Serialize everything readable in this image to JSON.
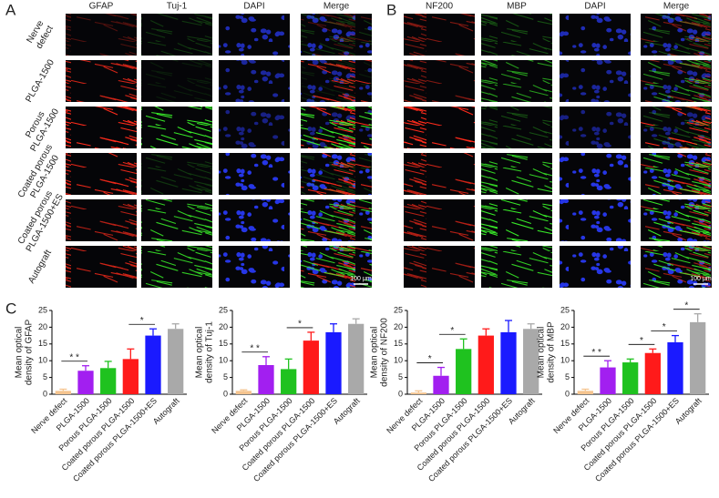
{
  "panel_a": {
    "label": "A",
    "columns": [
      "GFAP",
      "Tuj-1",
      "DAPI",
      "Merge"
    ],
    "rows": [
      [
        "Nerve",
        "defect"
      ],
      [
        "PLGA-1500"
      ],
      [
        "Porous",
        "PLGA-1500"
      ],
      [
        "Coated porous",
        "PLGA-1500"
      ],
      [
        "Coated porous",
        "PLGA-1500+ES"
      ],
      [
        "Autograft"
      ]
    ],
    "scale_bar": "100 μm"
  },
  "panel_b": {
    "label": "B",
    "columns": [
      "NF200",
      "MBP",
      "DAPI",
      "Merge"
    ],
    "scale_bar": "100 μm"
  },
  "panel_c": {
    "label": "C"
  },
  "chart_data": [
    {
      "type": "bar",
      "ylabel": [
        "Mean optical",
        "density of GFAP"
      ],
      "categories": [
        "Nerve defect",
        "PLGA-1500",
        "Porous PLGA-1500",
        "Coated porous PLGA-1500",
        "Coated porous PLGA-1500+ES",
        "Autograft"
      ],
      "values": [
        1,
        7,
        7.8,
        10.5,
        17.5,
        19.5
      ],
      "errors": [
        0.5,
        1.5,
        2,
        3,
        2,
        1.5
      ],
      "colors": [
        "#f5c48f",
        "#a21ff0",
        "#1fc21f",
        "#ff1a1a",
        "#1a1aff",
        "#a9a9a9"
      ],
      "ylim": [
        0,
        25
      ],
      "yticks": [
        0,
        5,
        10,
        15,
        20,
        25
      ],
      "annotations": [
        {
          "text": "* *",
          "between": [
            0,
            1
          ]
        },
        {
          "text": "*",
          "between": [
            3,
            4
          ]
        }
      ]
    },
    {
      "type": "bar",
      "ylabel": [
        "Mean optical",
        "density of Tuj-1"
      ],
      "categories": [
        "Nerve defect",
        "PLGA-1500",
        "Porous PLGA-1500",
        "Coated porous PLGA-1500",
        "Coated porous PLGA-1500+ES",
        "Autograft"
      ],
      "values": [
        1,
        8.7,
        7.5,
        16,
        18.5,
        21
      ],
      "errors": [
        0.3,
        2.5,
        3,
        2.5,
        2.5,
        1.5
      ],
      "colors": [
        "#f5c48f",
        "#a21ff0",
        "#1fc21f",
        "#ff1a1a",
        "#1a1aff",
        "#a9a9a9"
      ],
      "ylim": [
        0,
        25
      ],
      "yticks": [
        0,
        5,
        10,
        15,
        20,
        25
      ],
      "annotations": [
        {
          "text": "* *",
          "between": [
            0,
            1
          ]
        },
        {
          "text": "*",
          "between": [
            2,
            3
          ]
        }
      ]
    },
    {
      "type": "bar",
      "ylabel": [
        "Mean optical",
        "density of NF200"
      ],
      "categories": [
        "Nerve defect",
        "PLGA-1500",
        "Porous PLGA-1500",
        "Coated porous PLGA-1500",
        "Coated porous PLGA-1500+ES",
        "Autograft"
      ],
      "values": [
        0.5,
        5.5,
        13.5,
        17.5,
        18.5,
        19.5
      ],
      "errors": [
        0.5,
        2.5,
        3,
        2,
        3.5,
        1.5
      ],
      "colors": [
        "#f5c48f",
        "#a21ff0",
        "#1fc21f",
        "#ff1a1a",
        "#1a1aff",
        "#a9a9a9"
      ],
      "ylim": [
        0,
        25
      ],
      "yticks": [
        0,
        5,
        10,
        15,
        20,
        25
      ],
      "annotations": [
        {
          "text": "*",
          "between": [
            0,
            1
          ]
        },
        {
          "text": "*",
          "between": [
            1,
            2
          ]
        }
      ]
    },
    {
      "type": "bar",
      "ylabel": [
        "Mean optical",
        "density of MBP"
      ],
      "categories": [
        "Nerve defect",
        "PLGA-1500",
        "Porous PLGA-1500",
        "Coated porous PLGA-1500",
        "Coated porous PLGA-1500+ES",
        "Autograft"
      ],
      "values": [
        1,
        8,
        9.5,
        12.3,
        15.5,
        21.5
      ],
      "errors": [
        0.5,
        2,
        1,
        1.2,
        2,
        2.5
      ],
      "colors": [
        "#f5c48f",
        "#a21ff0",
        "#1fc21f",
        "#ff1a1a",
        "#1a1aff",
        "#a9a9a9"
      ],
      "ylim": [
        0,
        25
      ],
      "yticks": [
        0,
        5,
        10,
        15,
        20,
        25
      ],
      "annotations": [
        {
          "text": "* *",
          "between": [
            0,
            1
          ]
        },
        {
          "text": "*",
          "between": [
            2,
            3
          ]
        },
        {
          "text": "*",
          "between": [
            3,
            4
          ]
        },
        {
          "text": "*",
          "between": [
            4,
            5
          ]
        }
      ]
    }
  ]
}
